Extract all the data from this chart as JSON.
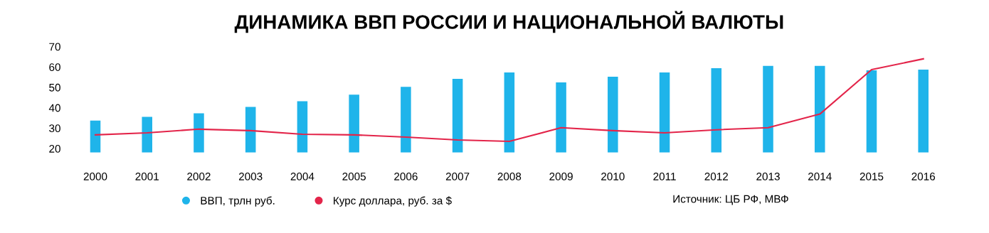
{
  "chart_data": {
    "type": "bar",
    "title": "ДИНАМИКА ВВП РОССИИ И НАЦИОНАЛЬНОЙ ВАЛЮТЫ",
    "categories": [
      "2000",
      "2001",
      "2002",
      "2003",
      "2004",
      "2005",
      "2006",
      "2007",
      "2008",
      "2009",
      "2010",
      "2011",
      "2012",
      "2013",
      "2014",
      "2015",
      "2016"
    ],
    "series": [
      {
        "name": "ВВП, трлн руб.",
        "color": "#1fb4ea",
        "values": [
          33.7,
          35.5,
          37.3,
          40.4,
          43.2,
          46.4,
          50.3,
          54.2,
          57.3,
          52.4,
          55.2,
          57.3,
          59.4,
          60.5,
          60.5,
          58.4,
          58.7
        ]
      },
      {
        "name": "Курс доллара, руб. за $",
        "type": "line",
        "color": "#e3254a",
        "values": [
          26.7,
          27.7,
          29.5,
          28.8,
          27.0,
          26.7,
          25.6,
          24.2,
          23.5,
          30.2,
          28.8,
          27.7,
          29.2,
          30.2,
          36.9,
          58.7,
          64.0
        ]
      }
    ],
    "ylim": [
      18,
      70
    ],
    "yticks": [
      20,
      30,
      40,
      50,
      60,
      70
    ],
    "grid": false,
    "legend": "bottom",
    "marker": "none",
    "line_style": "solid",
    "annotations": [
      "Источник: ЦБ РФ, МВФ"
    ]
  }
}
